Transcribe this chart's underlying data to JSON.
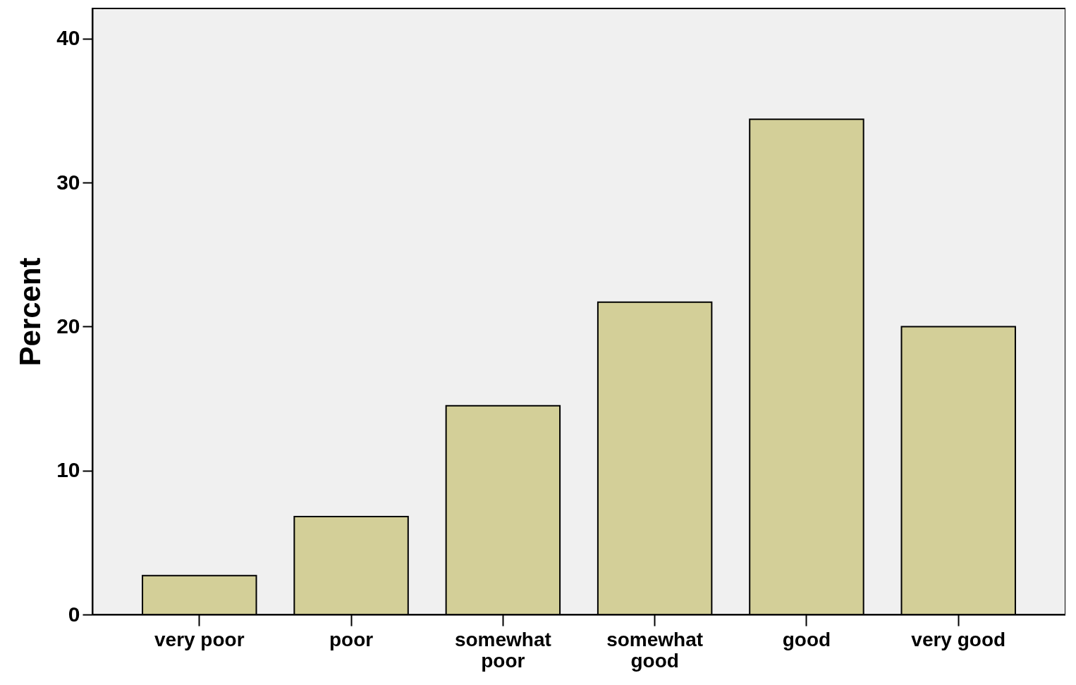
{
  "chart_data": {
    "type": "bar",
    "ylabel": "Percent",
    "categories": [
      "very poor",
      "poor",
      "somewhat poor",
      "somewhat good",
      "good",
      "very good"
    ],
    "values": [
      2.7,
      6.8,
      14.5,
      21.7,
      34.4,
      20.0
    ],
    "color": "#d3cf98",
    "ylim": [
      0,
      42.1
    ],
    "yticks": [
      0,
      10,
      20,
      30,
      40
    ],
    "grid": false
  }
}
